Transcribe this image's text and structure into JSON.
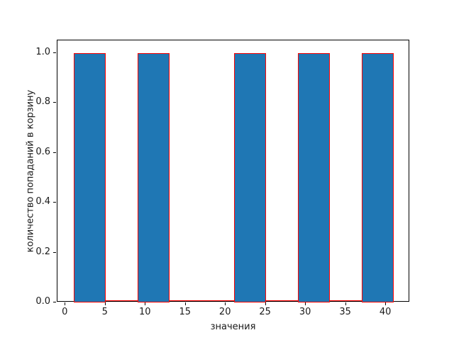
{
  "figure": {
    "background": "#ffffff",
    "spine_color": "#000000",
    "text_color": "#1a1a1a",
    "bar_fill": "#1f77b4",
    "bar_edge": "#ff0000"
  },
  "chart_data": {
    "type": "bar",
    "subtype": "histogram",
    "xlabel": "значения",
    "ylabel": "количество попаданий в корзину",
    "xlim": [
      -1,
      43
    ],
    "ylim": [
      0,
      1.05
    ],
    "grid": false,
    "legend": null,
    "xticks": [
      0,
      5,
      10,
      15,
      20,
      25,
      30,
      35,
      40
    ],
    "xtick_labels": [
      "0",
      "5",
      "10",
      "15",
      "20",
      "25",
      "30",
      "35",
      "40"
    ],
    "yticks": [
      0.0,
      0.2,
      0.4,
      0.6,
      0.8,
      1.0
    ],
    "ytick_labels": [
      "0.0",
      "0.2",
      "0.4",
      "0.6",
      "0.8",
      "1.0"
    ],
    "bars": [
      {
        "x_start": 1,
        "x_end": 5,
        "height": 1.0
      },
      {
        "x_start": 9,
        "x_end": 13,
        "height": 1.0
      },
      {
        "x_start": 21,
        "x_end": 25,
        "height": 1.0
      },
      {
        "x_start": 29,
        "x_end": 33,
        "height": 1.0
      },
      {
        "x_start": 37,
        "x_end": 41,
        "height": 1.0
      }
    ],
    "zero_height_baseline": {
      "x_start": 1,
      "x_end": 41
    }
  }
}
